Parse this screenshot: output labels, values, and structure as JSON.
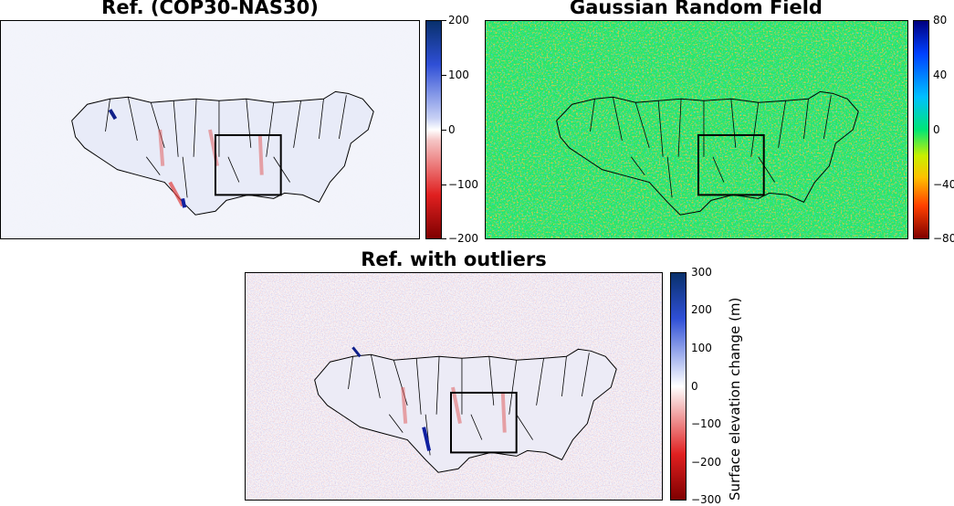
{
  "panels": [
    {
      "title": "Ref. (COP30-NAS30)",
      "colormap": "red-white-blue",
      "colorbar_ticks": [
        "200",
        "100",
        "0",
        "−100",
        "−200"
      ]
    },
    {
      "title": "Gaussian Random Field",
      "colormap": "jet",
      "colorbar_ticks": [
        "80",
        "40",
        "0",
        "−40",
        "−80"
      ]
    },
    {
      "title": "Ref. with outliers",
      "colormap": "red-white-blue",
      "colorbar_ticks": [
        "300",
        "200",
        "100",
        "0",
        "−100",
        "−200",
        "−300"
      ],
      "colorbar_label": "Surface elevation change (m)"
    }
  ],
  "colors": {
    "positive": "#08306b",
    "negative": "#7f0000",
    "neutral": "#ffffff",
    "jet_top": "#00007f",
    "jet_mid": "#00e676",
    "jet_bottom": "#7f0000"
  }
}
